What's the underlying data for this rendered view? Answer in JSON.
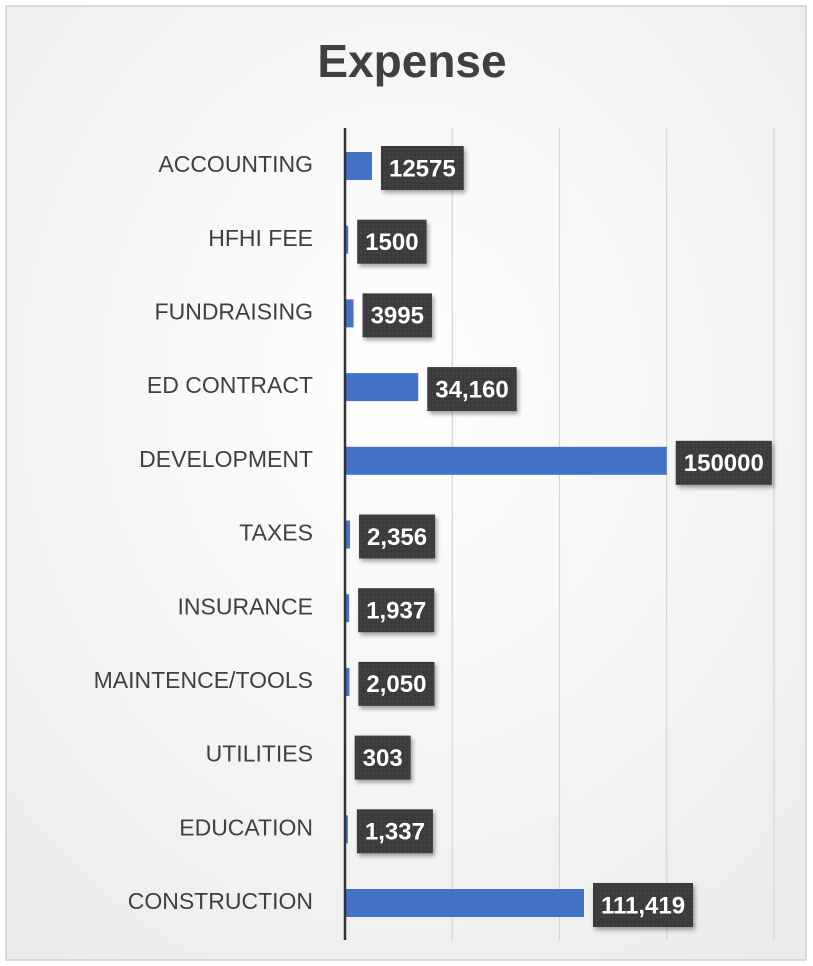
{
  "chart_data": {
    "type": "bar",
    "orientation": "horizontal",
    "title": "Expense",
    "categories": [
      "ACCOUNTING",
      "HFHI FEE",
      "FUNDRAISING",
      "ED CONTRACT",
      "DEVELOPMENT",
      "TAXES",
      "INSURANCE",
      "MAINTENCE/TOOLS",
      "UTILITIES",
      "EDUCATION",
      "CONSTRUCTION"
    ],
    "values": [
      12575,
      1500,
      3995,
      34160,
      150000,
      2356,
      1937,
      2050,
      303,
      1337,
      111419
    ],
    "value_labels": [
      "12575",
      "1500",
      "3995",
      "34,160",
      "150000",
      "2,356",
      "1,937",
      "2,050",
      "303",
      "1,337",
      "111,419"
    ],
    "color": "#4472c4",
    "xlim": [
      0,
      200000
    ],
    "xticks": [
      0,
      50000,
      100000,
      150000,
      200000
    ],
    "grid": true
  }
}
